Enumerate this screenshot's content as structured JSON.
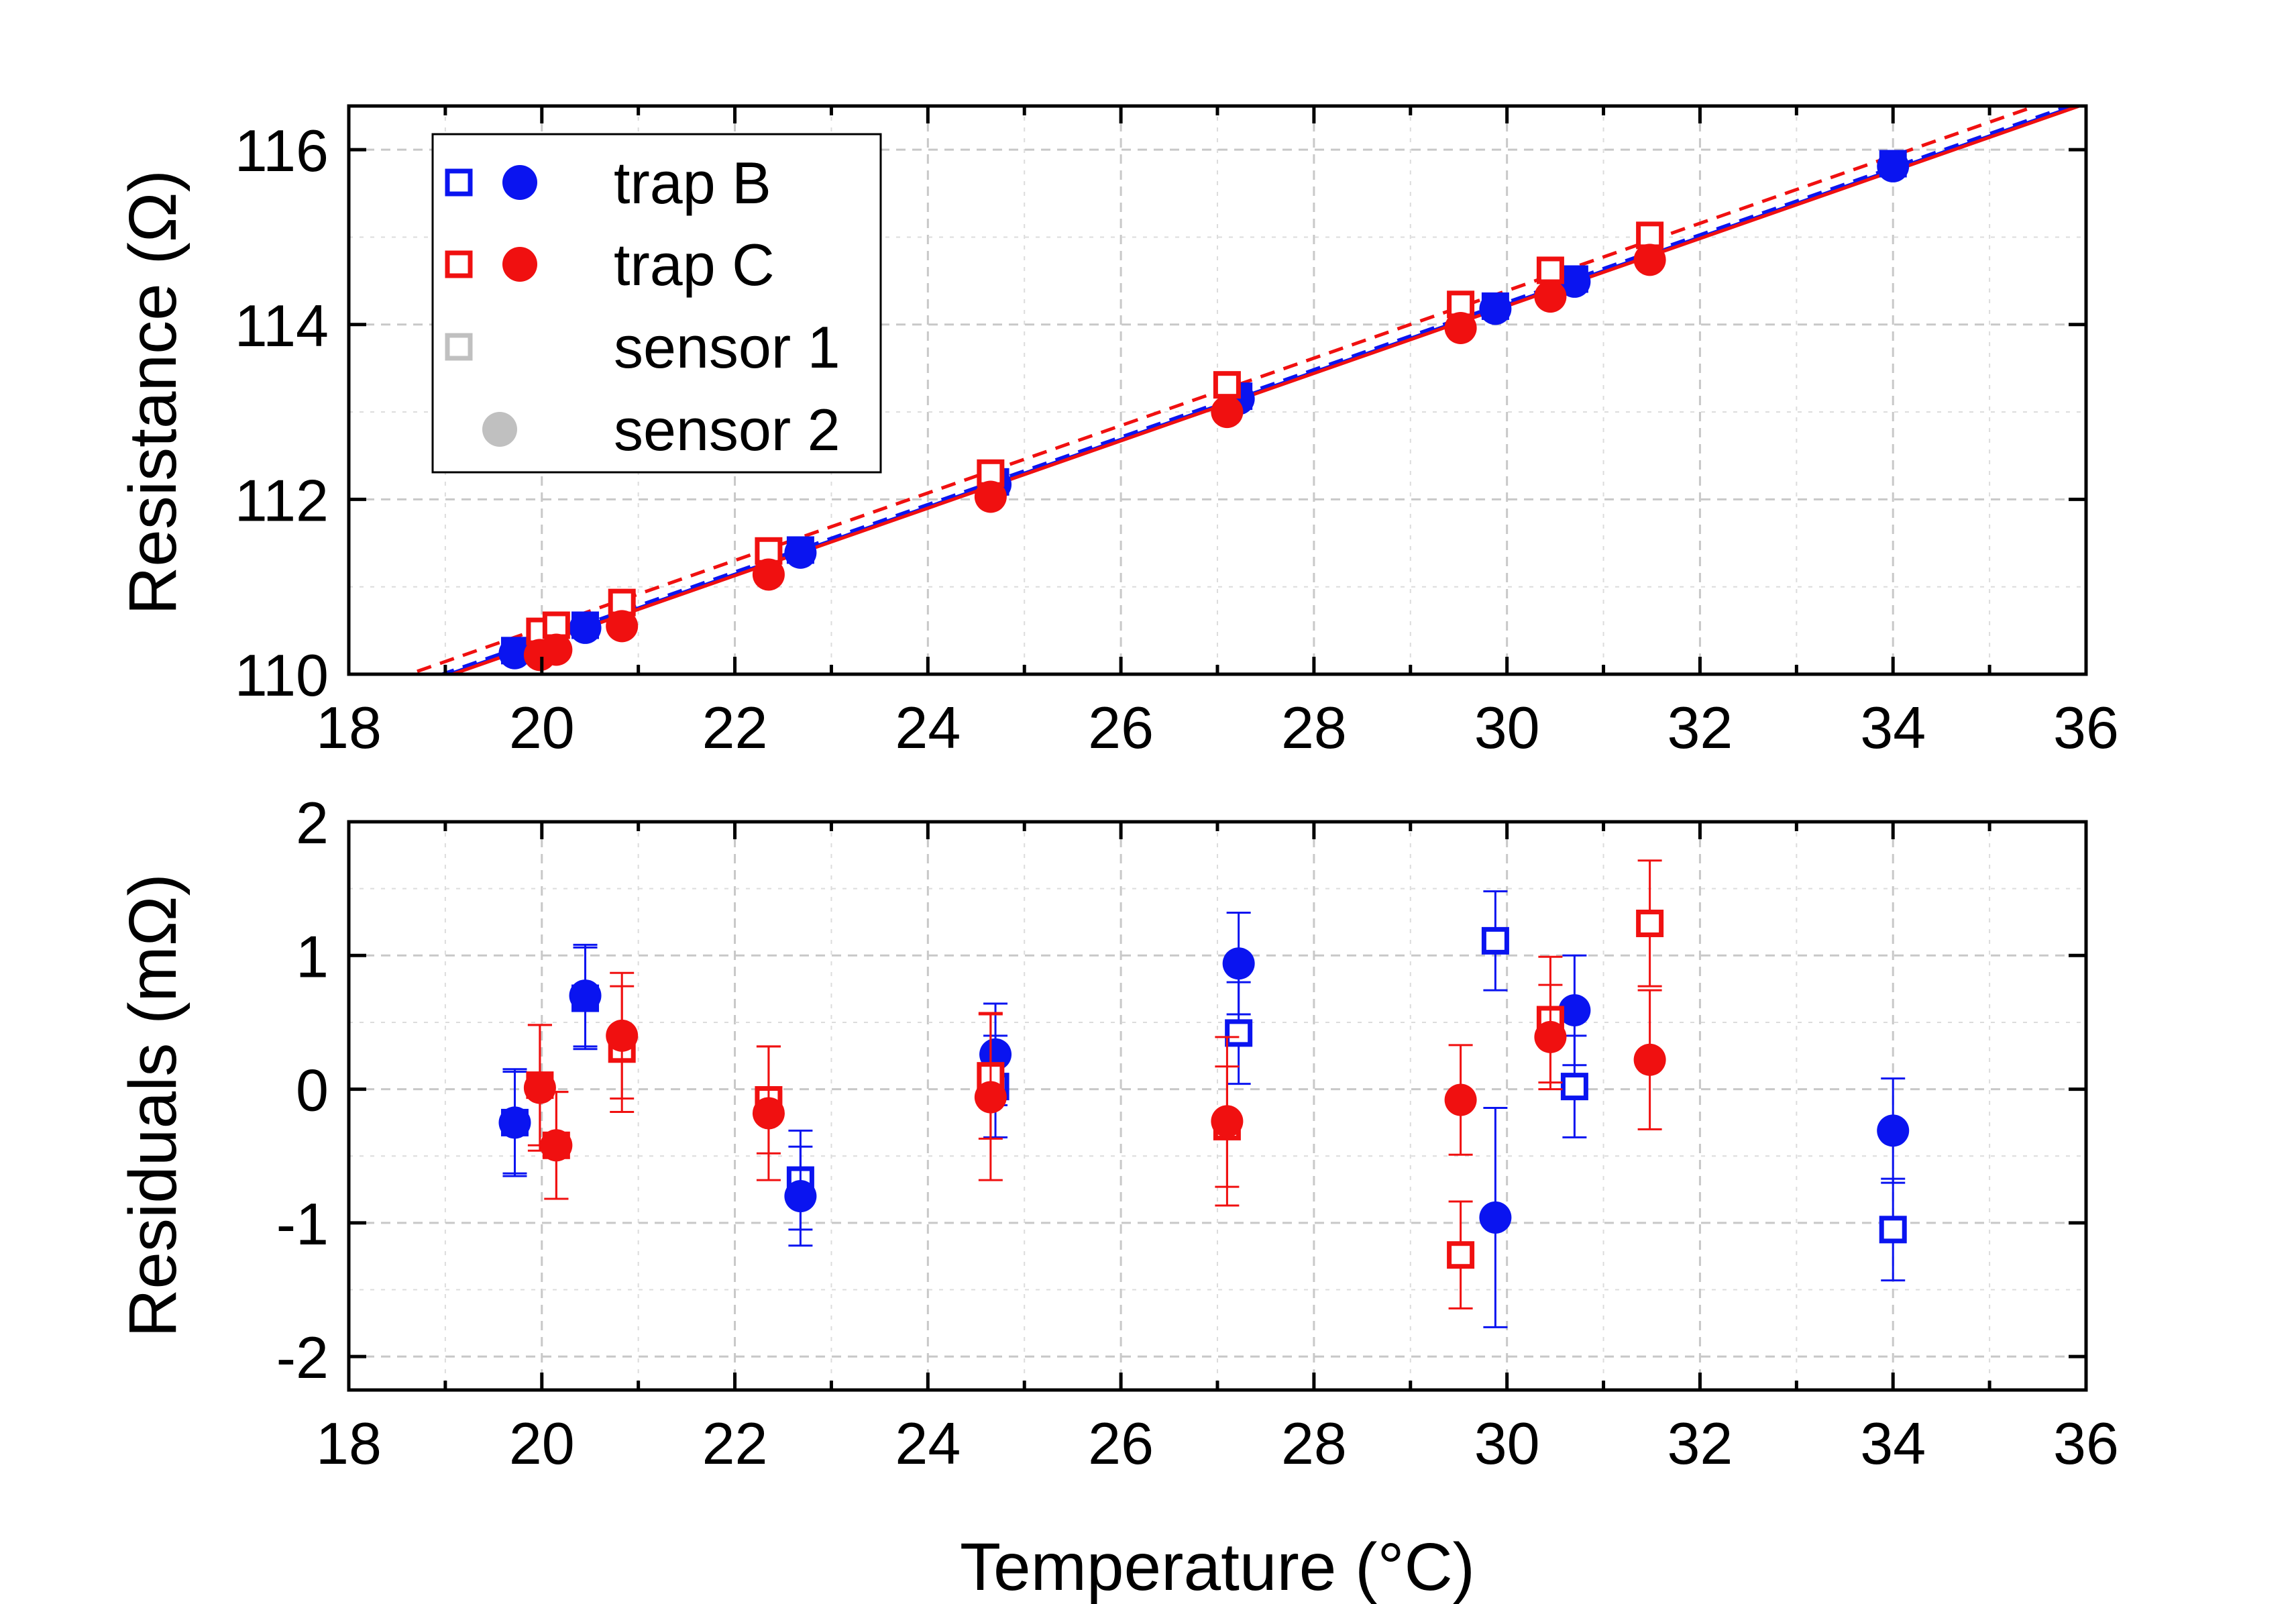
{
  "colors": {
    "trapB": "#0a14f0",
    "trapC": "#f01010",
    "legendGray": "#c0c0c0"
  },
  "chart_data": [
    {
      "type": "scatter",
      "panel": "top",
      "xlabel": "",
      "ylabel": "Resistance (Ω)",
      "xlim": [
        18,
        36
      ],
      "ylim": [
        110,
        116.5
      ],
      "xticks": [
        "18",
        "20",
        "22",
        "24",
        "26",
        "28",
        "30",
        "32",
        "34",
        "36"
      ],
      "yticks": [
        "110",
        "112",
        "114",
        "116"
      ],
      "legend": {
        "position": "top-left",
        "entries": [
          {
            "label": "trap B",
            "markers": [
              "open-square",
              "filled-circle"
            ],
            "color": "trapB"
          },
          {
            "label": "trap C",
            "markers": [
              "open-square",
              "filled-circle"
            ],
            "color": "trapC"
          },
          {
            "label": "sensor 1",
            "markers": [
              "open-square"
            ],
            "color": "legendGray"
          },
          {
            "label": "sensor 2",
            "markers": [
              "filled-circle"
            ],
            "color": "legendGray"
          }
        ]
      },
      "fits": [
        {
          "name": "trap B sensor 1 fit",
          "color": "trapB",
          "dashed": true,
          "x": [
            18,
            36
          ],
          "y": [
            109.627,
            116.569
          ]
        },
        {
          "name": "trap B sensor 2 fit",
          "color": "trapB",
          "dashed": false,
          "x": [
            18,
            36
          ],
          "y": [
            109.6,
            116.542
          ]
        },
        {
          "name": "trap C sensor 1 fit",
          "color": "trapC",
          "dashed": true,
          "x": [
            18,
            36
          ],
          "y": [
            109.759,
            116.701
          ]
        },
        {
          "name": "trap C sensor 2 fit",
          "color": "trapC",
          "dashed": false,
          "x": [
            18,
            36
          ],
          "y": [
            109.585,
            116.527
          ]
        }
      ],
      "series": [
        {
          "name": "trap B sensor 1",
          "color": "trapB",
          "marker": "square",
          "x": [
            19.72,
            20.45,
            22.68,
            24.7,
            27.22,
            29.88,
            30.7,
            34.0
          ],
          "y": [
            110.27,
            110.56,
            111.42,
            112.2,
            113.18,
            114.21,
            114.52,
            115.84
          ]
        },
        {
          "name": "trap B sensor 2",
          "color": "trapB",
          "marker": "circle",
          "x": [
            19.72,
            20.45,
            22.68,
            24.7,
            27.22,
            29.88,
            30.7,
            34.0
          ],
          "y": [
            110.24,
            110.53,
            111.39,
            112.17,
            113.15,
            114.18,
            114.49,
            115.81
          ]
        },
        {
          "name": "trap C sensor 1",
          "color": "trapC",
          "marker": "square",
          "x": [
            19.98,
            20.15,
            20.83,
            22.35,
            24.65,
            27.1,
            29.52,
            30.45,
            31.48
          ],
          "y": [
            110.49,
            110.56,
            110.82,
            111.41,
            112.3,
            113.31,
            114.23,
            114.62,
            115.02
          ]
        },
        {
          "name": "trap C sensor 2",
          "color": "trapC",
          "marker": "circle",
          "x": [
            19.98,
            20.15,
            20.83,
            22.35,
            24.65,
            27.1,
            29.52,
            30.45,
            31.48
          ],
          "y": [
            110.22,
            110.28,
            110.55,
            111.14,
            112.03,
            113.0,
            113.96,
            114.32,
            114.74
          ]
        }
      ]
    },
    {
      "type": "scatter",
      "panel": "bottom",
      "xlabel": "Temperature (°C)",
      "ylabel": "Residuals (mΩ)",
      "xlim": [
        18,
        36
      ],
      "ylim": [
        -2.25,
        2
      ],
      "xticks": [
        "18",
        "20",
        "22",
        "24",
        "26",
        "28",
        "30",
        "32",
        "34",
        "36"
      ],
      "yticks": [
        "-2",
        "-1",
        "0",
        "1",
        "2"
      ],
      "series": [
        {
          "name": "trap B sensor 1",
          "color": "trapB",
          "marker": "square",
          "x": [
            19.72,
            20.45,
            22.68,
            24.7,
            27.22,
            29.88,
            30.7,
            34.0
          ],
          "y": [
            -0.25,
            0.68,
            -0.68,
            0.02,
            0.42,
            1.11,
            0.02,
            -1.05
          ],
          "err": [
            0.38,
            0.38,
            0.37,
            0.38,
            0.38,
            0.37,
            0.38,
            0.38
          ]
        },
        {
          "name": "trap B sensor 2",
          "color": "trapB",
          "marker": "circle",
          "x": [
            19.72,
            20.45,
            22.68,
            24.7,
            27.22,
            29.88,
            30.7,
            34.0
          ],
          "y": [
            -0.25,
            0.7,
            -0.8,
            0.26,
            0.94,
            -0.96,
            0.59,
            -0.31
          ],
          "err": [
            0.4,
            0.38,
            0.37,
            0.38,
            0.38,
            0.82,
            0.41,
            0.39
          ]
        },
        {
          "name": "trap C sensor 1",
          "color": "trapC",
          "marker": "square",
          "x": [
            19.98,
            20.15,
            20.83,
            22.35,
            24.65,
            27.1,
            29.52,
            30.45,
            31.48
          ],
          "y": [
            0.03,
            -0.42,
            0.3,
            -0.08,
            0.1,
            -0.28,
            -1.24,
            0.52,
            1.24
          ],
          "err": [
            0.45,
            0.4,
            0.47,
            0.4,
            0.47,
            0.45,
            0.4,
            0.47,
            0.47
          ]
        },
        {
          "name": "trap C sensor 2",
          "color": "trapC",
          "marker": "circle",
          "x": [
            19.98,
            20.15,
            20.83,
            22.35,
            24.65,
            27.1,
            29.52,
            30.45,
            31.48
          ],
          "y": [
            0.01,
            -0.42,
            0.4,
            -0.18,
            -0.06,
            -0.24,
            -0.08,
            0.39,
            0.22
          ],
          "err": [
            0.47,
            0.4,
            0.47,
            0.5,
            0.62,
            0.63,
            0.41,
            0.39,
            0.52
          ]
        }
      ]
    }
  ]
}
